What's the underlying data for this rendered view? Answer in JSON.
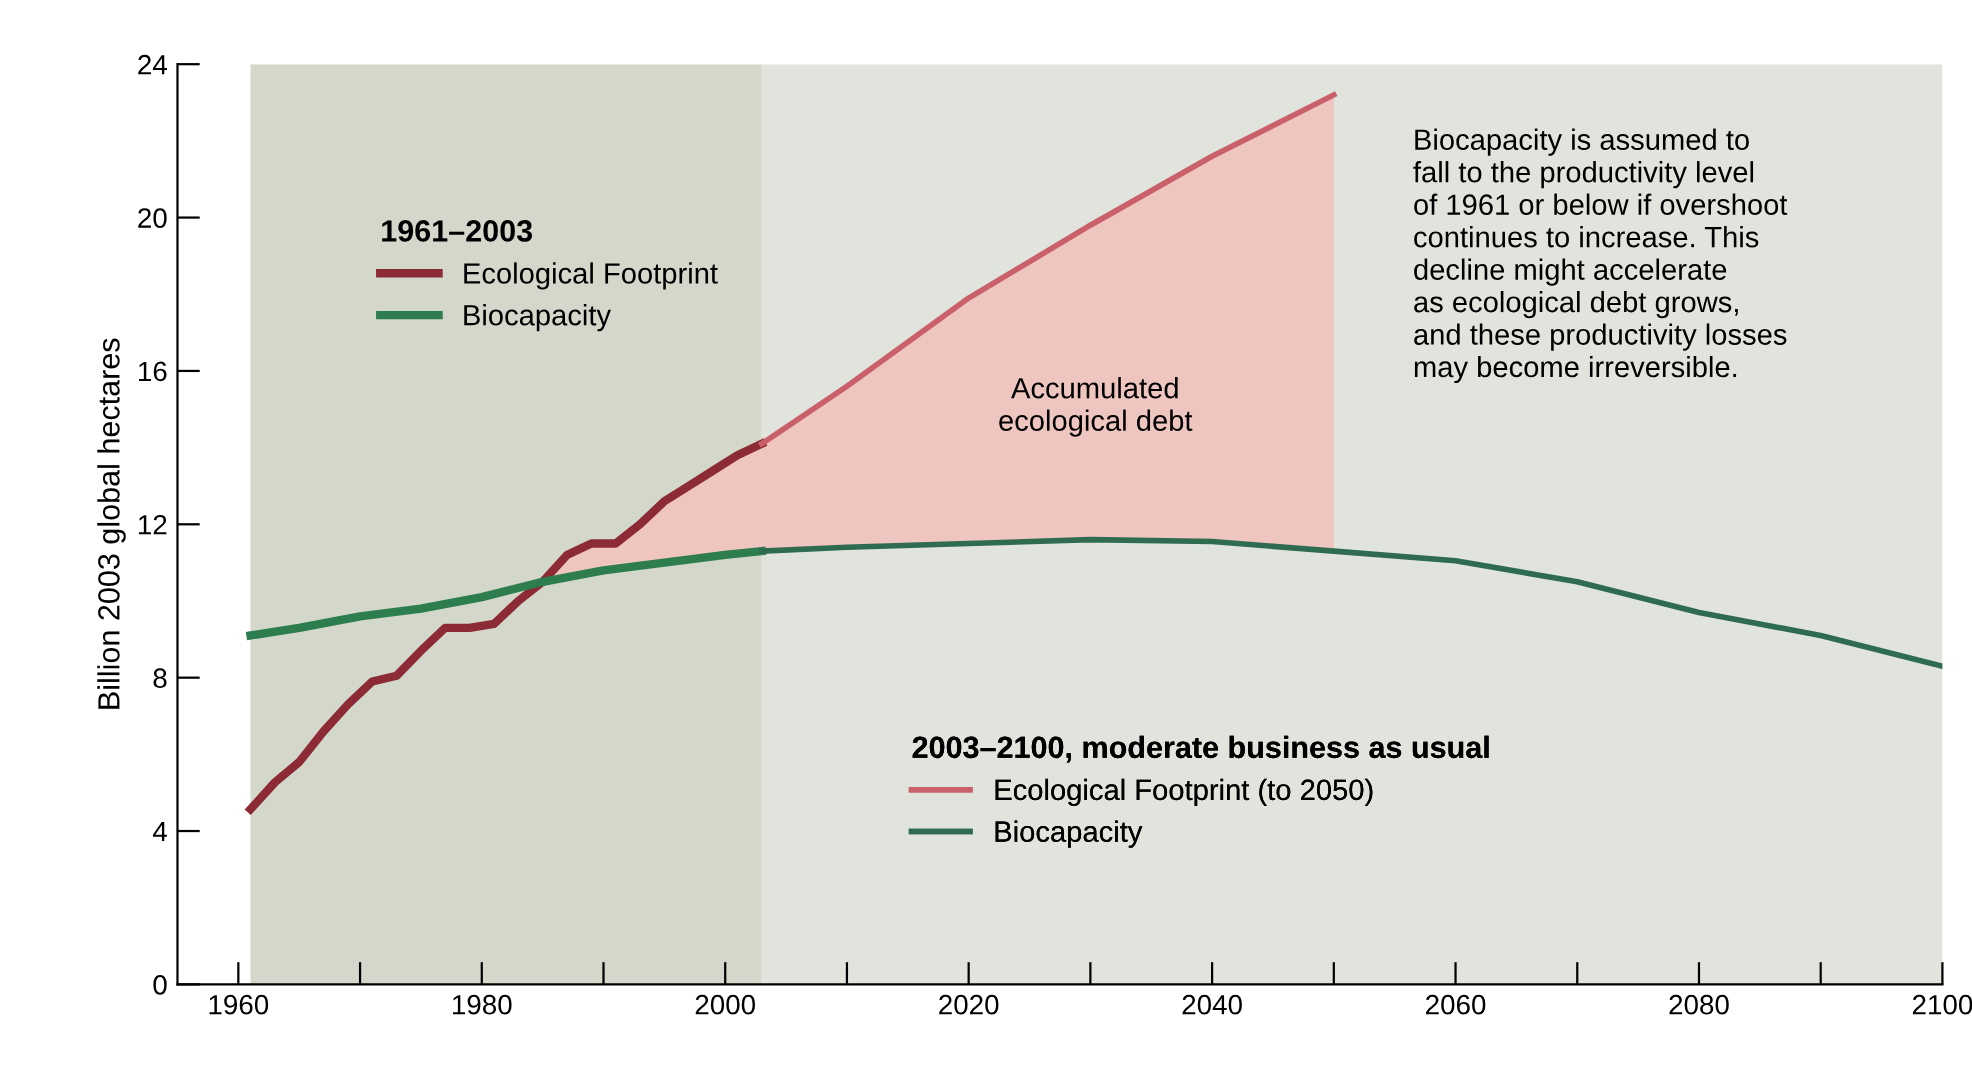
{
  "chart_data": {
    "type": "line",
    "ylabel": "Billion 2003 global hectares",
    "xlim": [
      1955,
      2100
    ],
    "ylim": [
      0,
      24
    ],
    "xticks": [
      1960,
      {
        "value": 1970,
        "label": null
      },
      1980,
      {
        "value": 1990,
        "label": null
      },
      2000,
      {
        "value": 2010,
        "label": null
      },
      2020,
      {
        "value": 2030,
        "label": null
      },
      2040,
      {
        "value": 2050,
        "label": null
      },
      2060,
      {
        "value": 2070,
        "label": null
      },
      2080,
      {
        "value": 2090,
        "label": null
      },
      2100
    ],
    "yticks": [
      0,
      4,
      8,
      12,
      16,
      20,
      24
    ],
    "grid": false,
    "legend": [
      "top left",
      "bottom"
    ],
    "legend_title": [
      "1961–2003",
      "2003–2100, moderate business as usual"
    ],
    "bands": [
      {
        "axis": "x",
        "from": 1961,
        "to": 2003,
        "color": "#d3d8cb"
      },
      {
        "axis": "x",
        "from": 2003,
        "to": 2100,
        "color": "#e0e4dd"
      }
    ],
    "series": [
      {
        "name": "Ecological Footprint",
        "color": "#8c2a36",
        "x": [
          1961,
          1963,
          1965,
          1967,
          1969,
          1971,
          1973,
          1975,
          1977,
          1979,
          1981,
          1983,
          1985,
          1987,
          1989,
          1991,
          1993,
          1995,
          1997,
          1999,
          2001,
          2003
        ],
        "values": [
          4.57,
          5.27,
          5.8,
          6.6,
          7.3,
          7.9,
          8.05,
          8.7,
          9.3,
          9.3,
          9.4,
          10.0,
          10.5,
          11.2,
          11.5,
          11.5,
          12.0,
          12.6,
          13.0,
          13.4,
          13.8,
          14.1
        ]
      },
      {
        "name": "Biocapacity",
        "color": "#2e7d4f",
        "x": [
          1961,
          1965,
          1970,
          1975,
          1980,
          1985,
          1990,
          1995,
          2000,
          2003
        ],
        "values": [
          9.1,
          9.3,
          9.6,
          9.8,
          10.1,
          10.5,
          10.8,
          11.0,
          11.2,
          11.3
        ]
      },
      {
        "name": "Ecological Footprint (to 2050)",
        "color": "#c9606a",
        "x": [
          2003,
          2010,
          2020,
          2030,
          2040,
          2050
        ],
        "values": [
          14.1,
          15.6,
          17.9,
          19.8,
          21.6,
          23.2
        ]
      },
      {
        "name": "Biocapacity",
        "color": "#2f6b50",
        "x": [
          2003,
          2010,
          2020,
          2030,
          2040,
          2050,
          2060,
          2070,
          2080,
          2090,
          2100
        ],
        "values": [
          11.3,
          11.4,
          11.5,
          11.6,
          11.55,
          11.3,
          11.05,
          10.5,
          9.7,
          9.1,
          8.3
        ]
      }
    ],
    "annotations": [
      "Accumulated\necological debt",
      "Biocapacity is assumed to\nfall to the productivity level\nof 1961 or below if overshoot\ncontinues to increase. This\ndecline might accelerate\nas ecological debt grows,\nand these productivity losses\nmay become irreversible."
    ]
  }
}
